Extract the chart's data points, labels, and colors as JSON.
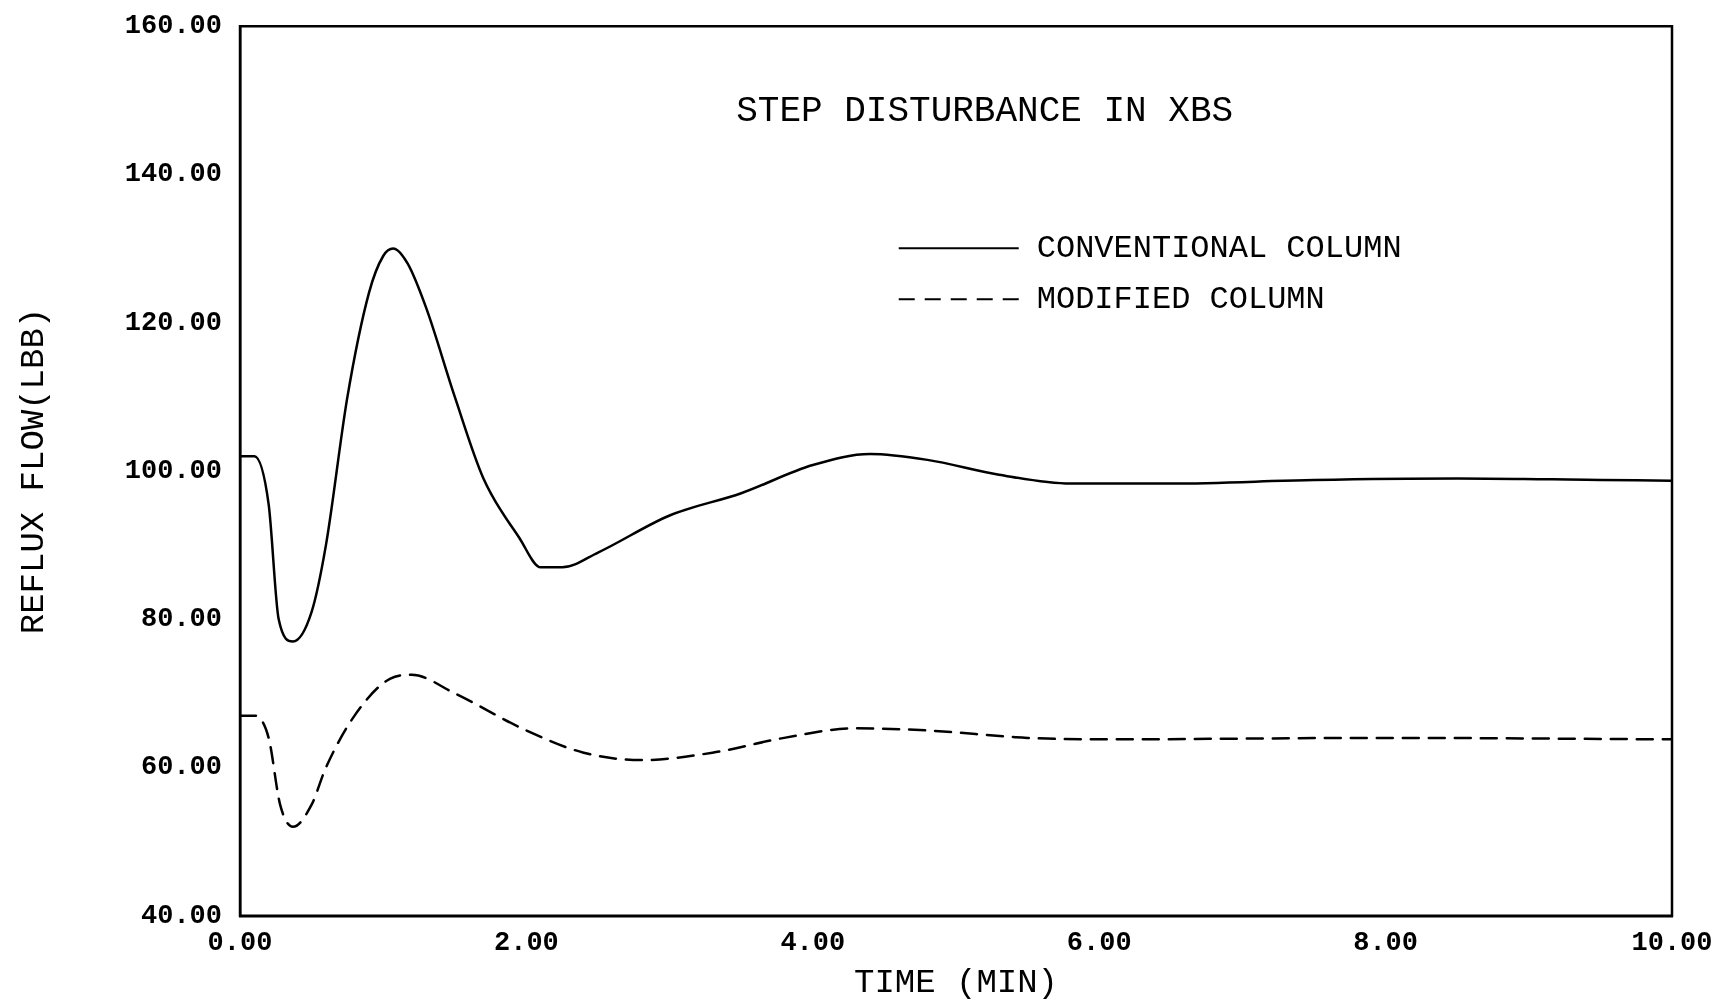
{
  "chart_data": {
    "type": "line",
    "title": "STEP DISTURBANCE IN XBS",
    "xlabel": "TIME (MIN)",
    "ylabel": "REFLUX FLOW(LBB)",
    "xlim": [
      0,
      10
    ],
    "xticks": [
      {
        "value": 0,
        "label": "0.00"
      },
      {
        "value": 2,
        "label": "2.00"
      },
      {
        "value": 4,
        "label": "4.00"
      },
      {
        "value": 6,
        "label": "6.00"
      },
      {
        "value": 8,
        "label": "8.00"
      },
      {
        "value": 10,
        "label": "10.00"
      }
    ],
    "ylim": [
      40,
      160
    ],
    "yticks": [
      {
        "value": 40,
        "label": "40.00"
      },
      {
        "value": 60,
        "label": "60.00"
      },
      {
        "value": 80,
        "label": "80.00"
      },
      {
        "value": 100,
        "label": "100.00"
      },
      {
        "value": 120,
        "label": "120.00"
      },
      {
        "value": 140,
        "label": "140.00"
      },
      {
        "value": 160,
        "label": "160.00"
      }
    ],
    "grid": false,
    "legend": "top right",
    "marker": "none",
    "series": [
      {
        "name": "CONVENTIONAL COLUMN",
        "color": "#000000",
        "line_style": "solid",
        "x": [
          0,
          0.1,
          0.2,
          0.27,
          0.37,
          0.5,
          0.6,
          0.75,
          0.9,
          1.0,
          1.07,
          1.17,
          1.3,
          1.5,
          1.7,
          1.95,
          2.1,
          2.25,
          2.5,
          3,
          3.5,
          4,
          4.4,
          4.8,
          5.3,
          5.8,
          6.5,
          7.5,
          8.5,
          9.5,
          10
        ],
        "values": [
          102,
          102,
          95.5,
          80,
          77,
          81,
          90,
          110,
          124,
          129,
          130,
          128,
          122,
          110,
          99,
          91,
          87,
          87,
          89,
          94,
          97,
          100.8,
          102.3,
          101.5,
          99.5,
          98.3,
          98.3,
          98.8,
          99,
          98.8,
          98.7
        ]
      },
      {
        "name": "MODIFIED COLUMN",
        "color": "#000000",
        "line_style": "dashed",
        "x": [
          0,
          0.1,
          0.2,
          0.28,
          0.37,
          0.5,
          0.6,
          0.8,
          1.05,
          1.2,
          1.5,
          2.0,
          2.4,
          2.8,
          3.3,
          3.8,
          4.3,
          4.8,
          5.5,
          6,
          8,
          10
        ],
        "values": [
          67,
          67,
          64,
          55,
          52,
          55,
          60,
          67,
          72,
          72.5,
          70,
          65,
          62,
          61,
          62,
          64,
          65.3,
          65,
          64,
          63.8,
          64,
          63.8
        ]
      }
    ]
  }
}
